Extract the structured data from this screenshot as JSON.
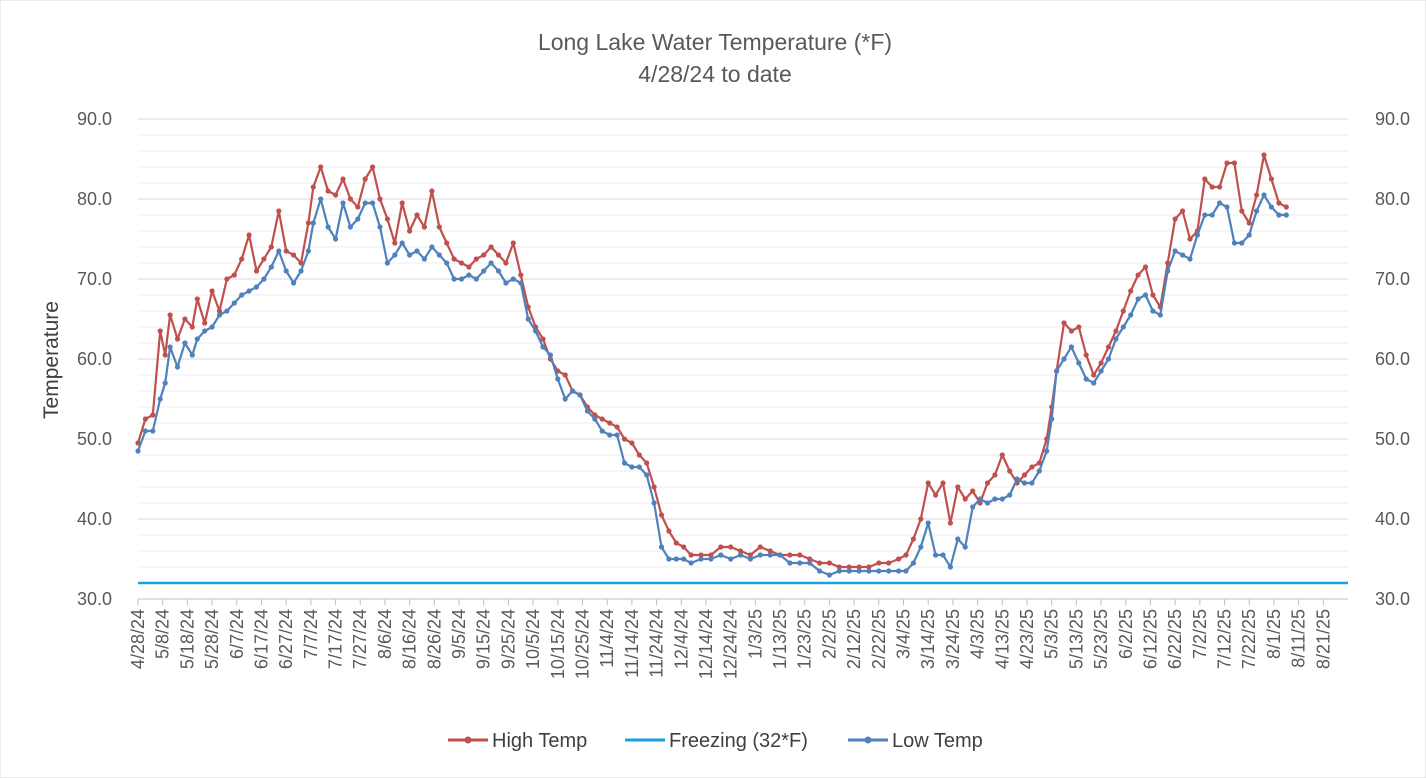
{
  "chart_data": {
    "type": "line",
    "title": "Long Lake Water Temperature (*F)",
    "subtitle": "4/28/24 to date",
    "ylabel": "Temperature",
    "xlabel": "",
    "ylim": [
      30,
      90
    ],
    "yticks": [
      "30.0",
      "40.0",
      "50.0",
      "60.0",
      "70.0",
      "80.0",
      "90.0"
    ],
    "xlim": [
      "2024-04-28",
      "2025-08-31"
    ],
    "x_tick_interval_days": 10,
    "xtick_labels": [
      "4/28/24",
      "5/8/24",
      "5/18/24",
      "5/28/24",
      "6/7/24",
      "6/17/24",
      "6/27/24",
      "7/7/24",
      "7/17/24",
      "7/27/24",
      "8/6/24",
      "8/16/24",
      "8/26/24",
      "9/5/24",
      "9/15/24",
      "9/25/24",
      "10/5/24",
      "10/15/24",
      "10/25/24",
      "11/4/24",
      "11/14/24",
      "11/24/24",
      "12/4/24",
      "12/14/24",
      "12/24/24",
      "1/3/25",
      "1/13/25",
      "1/23/25",
      "2/2/25",
      "2/12/25",
      "2/22/25",
      "3/4/25",
      "3/14/25",
      "3/24/25",
      "4/3/25",
      "4/13/25",
      "4/23/25",
      "5/3/25",
      "5/13/25",
      "5/23/25",
      "6/2/25",
      "6/12/25",
      "6/22/25",
      "7/2/25",
      "7/12/25",
      "7/22/25",
      "8/1/25",
      "8/11/25",
      "8/21/25"
    ],
    "grid": true,
    "legend_position": "bottom",
    "series": [
      {
        "name": "High Temp",
        "color": "#c0504d",
        "marker": "circle",
        "x": [
          "2024-04-28",
          "2024-05-01",
          "2024-05-04",
          "2024-05-07",
          "2024-05-09",
          "2024-05-11",
          "2024-05-14",
          "2024-05-17",
          "2024-05-20",
          "2024-05-22",
          "2024-05-25",
          "2024-05-28",
          "2024-05-31",
          "2024-06-03",
          "2024-06-06",
          "2024-06-09",
          "2024-06-12",
          "2024-06-15",
          "2024-06-18",
          "2024-06-21",
          "2024-06-24",
          "2024-06-27",
          "2024-06-30",
          "2024-07-03",
          "2024-07-06",
          "2024-07-08",
          "2024-07-11",
          "2024-07-14",
          "2024-07-17",
          "2024-07-20",
          "2024-07-23",
          "2024-07-26",
          "2024-07-29",
          "2024-08-01",
          "2024-08-04",
          "2024-08-07",
          "2024-08-10",
          "2024-08-13",
          "2024-08-16",
          "2024-08-19",
          "2024-08-22",
          "2024-08-25",
          "2024-08-28",
          "2024-08-31",
          "2024-09-03",
          "2024-09-06",
          "2024-09-09",
          "2024-09-12",
          "2024-09-15",
          "2024-09-18",
          "2024-09-21",
          "2024-09-24",
          "2024-09-27",
          "2024-09-30",
          "2024-10-03",
          "2024-10-06",
          "2024-10-09",
          "2024-10-12",
          "2024-10-15",
          "2024-10-18",
          "2024-10-21",
          "2024-10-24",
          "2024-10-27",
          "2024-10-30",
          "2024-11-02",
          "2024-11-05",
          "2024-11-08",
          "2024-11-11",
          "2024-11-14",
          "2024-11-17",
          "2024-11-20",
          "2024-11-23",
          "2024-11-26",
          "2024-11-29",
          "2024-12-02",
          "2024-12-05",
          "2024-12-08",
          "2024-12-12",
          "2024-12-16",
          "2024-12-20",
          "2024-12-24",
          "2024-12-28",
          "2025-01-01",
          "2025-01-05",
          "2025-01-09",
          "2025-01-13",
          "2025-01-17",
          "2025-01-21",
          "2025-01-25",
          "2025-01-29",
          "2025-02-02",
          "2025-02-06",
          "2025-02-10",
          "2025-02-14",
          "2025-02-18",
          "2025-02-22",
          "2025-02-26",
          "2025-03-02",
          "2025-03-05",
          "2025-03-08",
          "2025-03-11",
          "2025-03-14",
          "2025-03-17",
          "2025-03-20",
          "2025-03-23",
          "2025-03-26",
          "2025-03-29",
          "2025-04-01",
          "2025-04-04",
          "2025-04-07",
          "2025-04-10",
          "2025-04-13",
          "2025-04-16",
          "2025-04-19",
          "2025-04-22",
          "2025-04-25",
          "2025-04-28",
          "2025-05-01",
          "2025-05-03",
          "2025-05-05",
          "2025-05-08",
          "2025-05-11",
          "2025-05-14",
          "2025-05-17",
          "2025-05-20",
          "2025-05-23",
          "2025-05-26",
          "2025-05-29",
          "2025-06-01",
          "2025-06-04",
          "2025-06-07",
          "2025-06-10",
          "2025-06-13",
          "2025-06-16",
          "2025-06-19",
          "2025-06-22",
          "2025-06-25",
          "2025-06-28",
          "2025-07-01",
          "2025-07-04",
          "2025-07-07",
          "2025-07-10",
          "2025-07-13",
          "2025-07-16",
          "2025-07-19",
          "2025-07-22",
          "2025-07-25",
          "2025-07-28",
          "2025-07-31",
          "2025-08-03",
          "2025-08-06"
        ],
        "values": [
          49.5,
          52.5,
          53.0,
          63.5,
          60.5,
          65.5,
          62.5,
          65.0,
          64.0,
          67.5,
          64.5,
          68.5,
          66.0,
          70.0,
          70.5,
          72.5,
          75.5,
          71.0,
          72.5,
          74.0,
          78.5,
          73.5,
          73.0,
          72.0,
          77.0,
          81.5,
          84.0,
          81.0,
          80.5,
          82.5,
          80.0,
          79.0,
          82.5,
          84.0,
          80.0,
          77.5,
          74.5,
          79.5,
          76.0,
          78.0,
          76.5,
          81.0,
          76.5,
          74.5,
          72.5,
          72.0,
          71.5,
          72.5,
          73.0,
          74.0,
          73.0,
          72.0,
          74.5,
          70.5,
          66.5,
          64.0,
          62.5,
          60.0,
          58.5,
          58.0,
          56.0,
          55.5,
          54.0,
          53.0,
          52.5,
          52.0,
          51.5,
          50.0,
          49.5,
          48.0,
          47.0,
          44.0,
          40.5,
          38.5,
          37.0,
          36.5,
          35.5,
          35.5,
          35.5,
          36.5,
          36.5,
          36.0,
          35.5,
          36.5,
          36.0,
          35.5,
          35.5,
          35.5,
          35.0,
          34.5,
          34.5,
          34.0,
          34.0,
          34.0,
          34.0,
          34.5,
          34.5,
          35.0,
          35.5,
          37.5,
          40.0,
          44.5,
          43.0,
          44.5,
          39.5,
          44.0,
          42.5,
          43.5,
          42.0,
          44.5,
          45.5,
          48.0,
          46.0,
          44.5,
          45.5,
          46.5,
          47.0,
          50.0,
          54.0,
          58.5,
          64.5,
          63.5,
          64.0,
          60.5,
          58.0,
          59.5,
          61.5,
          63.5,
          66.0,
          68.5,
          70.5,
          71.5,
          68.0,
          66.5,
          72.0,
          77.5,
          78.5,
          75.0,
          76.0,
          82.5,
          81.5,
          81.5,
          84.5,
          84.5,
          78.5,
          77.0,
          80.5,
          85.5,
          82.5,
          79.5,
          79.0
        ]
      },
      {
        "name": "Freezing (32*F)",
        "color": "#1ba1e2",
        "marker": "none",
        "x": [
          "2024-04-28",
          "2025-08-31"
        ],
        "values": [
          32.0,
          32.0
        ]
      },
      {
        "name": "Low Temp",
        "color": "#4f81bd",
        "marker": "circle",
        "x": [
          "2024-04-28",
          "2024-05-01",
          "2024-05-04",
          "2024-05-07",
          "2024-05-09",
          "2024-05-11",
          "2024-05-14",
          "2024-05-17",
          "2024-05-20",
          "2024-05-22",
          "2024-05-25",
          "2024-05-28",
          "2024-05-31",
          "2024-06-03",
          "2024-06-06",
          "2024-06-09",
          "2024-06-12",
          "2024-06-15",
          "2024-06-18",
          "2024-06-21",
          "2024-06-24",
          "2024-06-27",
          "2024-06-30",
          "2024-07-03",
          "2024-07-06",
          "2024-07-08",
          "2024-07-11",
          "2024-07-14",
          "2024-07-17",
          "2024-07-20",
          "2024-07-23",
          "2024-07-26",
          "2024-07-29",
          "2024-08-01",
          "2024-08-04",
          "2024-08-07",
          "2024-08-10",
          "2024-08-13",
          "2024-08-16",
          "2024-08-19",
          "2024-08-22",
          "2024-08-25",
          "2024-08-28",
          "2024-08-31",
          "2024-09-03",
          "2024-09-06",
          "2024-09-09",
          "2024-09-12",
          "2024-09-15",
          "2024-09-18",
          "2024-09-21",
          "2024-09-24",
          "2024-09-27",
          "2024-09-30",
          "2024-10-03",
          "2024-10-06",
          "2024-10-09",
          "2024-10-12",
          "2024-10-15",
          "2024-10-18",
          "2024-10-21",
          "2024-10-24",
          "2024-10-27",
          "2024-10-30",
          "2024-11-02",
          "2024-11-05",
          "2024-11-08",
          "2024-11-11",
          "2024-11-14",
          "2024-11-17",
          "2024-11-20",
          "2024-11-23",
          "2024-11-26",
          "2024-11-29",
          "2024-12-02",
          "2024-12-05",
          "2024-12-08",
          "2024-12-12",
          "2024-12-16",
          "2024-12-20",
          "2024-12-24",
          "2024-12-28",
          "2025-01-01",
          "2025-01-05",
          "2025-01-09",
          "2025-01-13",
          "2025-01-17",
          "2025-01-21",
          "2025-01-25",
          "2025-01-29",
          "2025-02-02",
          "2025-02-06",
          "2025-02-10",
          "2025-02-14",
          "2025-02-18",
          "2025-02-22",
          "2025-02-26",
          "2025-03-02",
          "2025-03-05",
          "2025-03-08",
          "2025-03-11",
          "2025-03-14",
          "2025-03-17",
          "2025-03-20",
          "2025-03-23",
          "2025-03-26",
          "2025-03-29",
          "2025-04-01",
          "2025-04-04",
          "2025-04-07",
          "2025-04-10",
          "2025-04-13",
          "2025-04-16",
          "2025-04-19",
          "2025-04-22",
          "2025-04-25",
          "2025-04-28",
          "2025-05-01",
          "2025-05-03",
          "2025-05-05",
          "2025-05-08",
          "2025-05-11",
          "2025-05-14",
          "2025-05-17",
          "2025-05-20",
          "2025-05-23",
          "2025-05-26",
          "2025-05-29",
          "2025-06-01",
          "2025-06-04",
          "2025-06-07",
          "2025-06-10",
          "2025-06-13",
          "2025-06-16",
          "2025-06-19",
          "2025-06-22",
          "2025-06-25",
          "2025-06-28",
          "2025-07-01",
          "2025-07-04",
          "2025-07-07",
          "2025-07-10",
          "2025-07-13",
          "2025-07-16",
          "2025-07-19",
          "2025-07-22",
          "2025-07-25",
          "2025-07-28",
          "2025-07-31",
          "2025-08-03",
          "2025-08-06"
        ],
        "values": [
          48.5,
          51.0,
          51.0,
          55.0,
          57.0,
          61.5,
          59.0,
          62.0,
          60.5,
          62.5,
          63.5,
          64.0,
          65.5,
          66.0,
          67.0,
          68.0,
          68.5,
          69.0,
          70.0,
          71.5,
          73.5,
          71.0,
          69.5,
          71.0,
          73.5,
          77.0,
          80.0,
          76.5,
          75.0,
          79.5,
          76.5,
          77.5,
          79.5,
          79.5,
          76.5,
          72.0,
          73.0,
          74.5,
          73.0,
          73.5,
          72.5,
          74.0,
          73.0,
          72.0,
          70.0,
          70.0,
          70.5,
          70.0,
          71.0,
          72.0,
          71.0,
          69.5,
          70.0,
          69.5,
          65.0,
          63.5,
          61.5,
          60.5,
          57.5,
          55.0,
          56.0,
          55.5,
          53.5,
          52.5,
          51.0,
          50.5,
          50.5,
          47.0,
          46.5,
          46.5,
          45.5,
          42.0,
          36.5,
          35.0,
          35.0,
          35.0,
          34.5,
          35.0,
          35.0,
          35.5,
          35.0,
          35.5,
          35.0,
          35.5,
          35.5,
          35.5,
          34.5,
          34.5,
          34.5,
          33.5,
          33.0,
          33.5,
          33.5,
          33.5,
          33.5,
          33.5,
          33.5,
          33.5,
          33.5,
          34.5,
          36.5,
          39.5,
          35.5,
          35.5,
          34.0,
          37.5,
          36.5,
          41.5,
          42.5,
          42.0,
          42.5,
          42.5,
          43.0,
          45.0,
          44.5,
          44.5,
          46.0,
          48.5,
          52.5,
          58.5,
          60.0,
          61.5,
          59.5,
          57.5,
          57.0,
          58.5,
          60.0,
          62.5,
          64.0,
          65.5,
          67.5,
          68.0,
          66.0,
          65.5,
          71.0,
          73.5,
          73.0,
          72.5,
          75.5,
          78.0,
          78.0,
          79.5,
          79.0,
          74.5,
          74.5,
          75.5,
          78.5,
          80.5,
          79.0,
          78.0,
          78.0
        ]
      }
    ]
  }
}
